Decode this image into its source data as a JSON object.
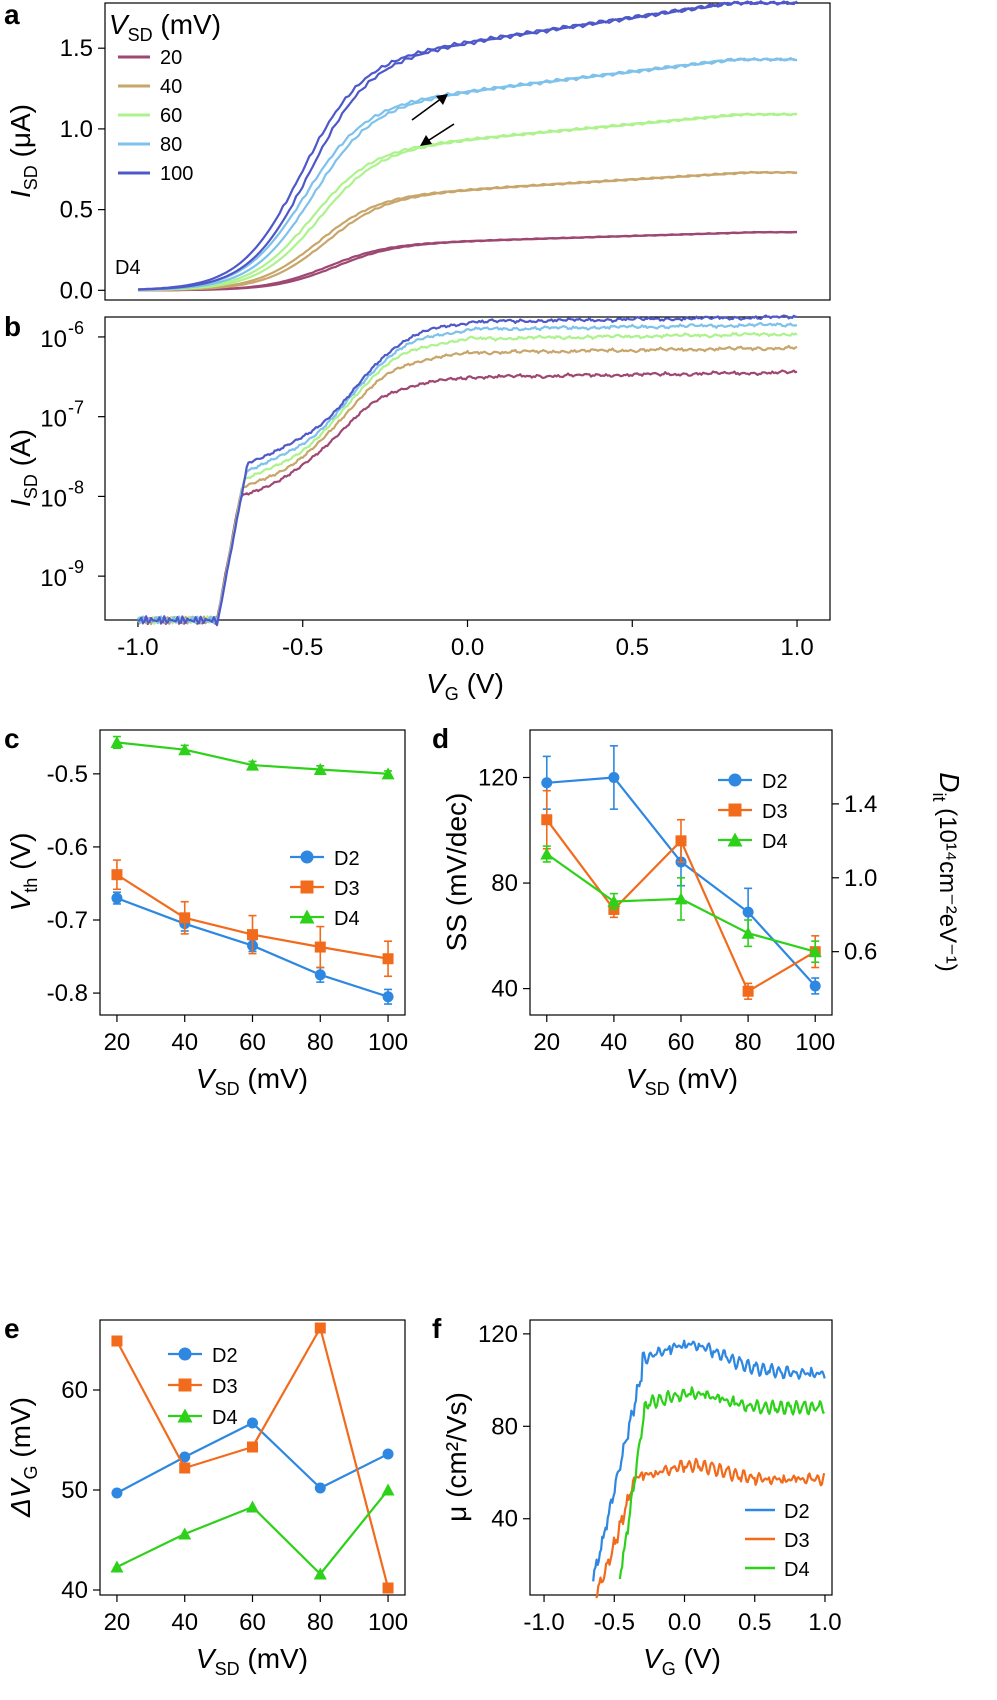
{
  "chart_data": [
    {
      "panel": "a",
      "type": "line",
      "title": "",
      "xlabel": "",
      "ylabel": {
        "main": "I",
        "sub": "SD",
        "unit": " (μA)"
      },
      "xlim": [
        -1.0,
        1.0
      ],
      "ylim": [
        -0.06,
        1.78
      ],
      "yticks": [
        "0.0",
        "0.5",
        "1.0",
        "1.5"
      ],
      "ytick_values": [
        0,
        0.5,
        1.0,
        1.5
      ],
      "legend_title": {
        "main": "V",
        "sub": "SD",
        "unit": " (mV)"
      },
      "annotation": "D4",
      "hysteresis_arrows": [
        "forward sweep",
        "reverse sweep"
      ],
      "series": [
        {
          "name": "20",
          "color": "#9e4772",
          "vs": 20,
          "sat": 0.36,
          "Vth": -0.42
        },
        {
          "name": "40",
          "color": "#c8a66b",
          "vs": 40,
          "sat": 0.73,
          "Vth": -0.45
        },
        {
          "name": "60",
          "color": "#aef28e",
          "vs": 60,
          "sat": 1.09,
          "Vth": -0.47
        },
        {
          "name": "80",
          "color": "#7ec2ec",
          "vs": 80,
          "sat": 1.43,
          "Vth": -0.49
        },
        {
          "name": "100",
          "color": "#4e58c8",
          "vs": 100,
          "sat": 1.78,
          "Vth": -0.5
        }
      ]
    },
    {
      "panel": "b",
      "type": "line",
      "yscale": "log",
      "xlabel": {
        "main": "V",
        "sub": "G",
        "unit": " (V)"
      },
      "ylabel": {
        "main": "I",
        "sub": "SD",
        "unit": " (A)"
      },
      "xlim": [
        -1.1,
        1.1
      ],
      "ylim_log10": [
        -9.55,
        -5.75
      ],
      "xticks": [
        "-1.0",
        "-0.5",
        "0.0",
        "0.5",
        "1.0"
      ],
      "xtick_values": [
        -1.0,
        -0.5,
        0.0,
        0.5,
        1.0
      ],
      "yticks": [
        "10",
        "10",
        "10",
        "10"
      ],
      "ytick_exponents": [
        "-9",
        "-8",
        "-7",
        "-6"
      ],
      "ytick_values": [
        -9,
        -8,
        -7,
        -6
      ],
      "off_current_A": 2.8e-10,
      "series_note": "same V_SD series as panel a: 20, 40, 60, 80, 100 mV"
    },
    {
      "panel": "c",
      "type": "line",
      "xlabel": {
        "main": "V",
        "sub": "SD",
        "unit": " (mV)"
      },
      "ylabel": {
        "main": "V",
        "sub": "th",
        "unit": " (V)"
      },
      "xlim": [
        15,
        105
      ],
      "ylim": [
        -0.83,
        -0.44
      ],
      "xticks": [
        "20",
        "40",
        "60",
        "80",
        "100"
      ],
      "xtick_values": [
        20,
        40,
        60,
        80,
        100
      ],
      "yticks": [
        "-0.8",
        "-0.7",
        "-0.6",
        "-0.5"
      ],
      "ytick_values": [
        -0.8,
        -0.7,
        -0.6,
        -0.5
      ],
      "x": [
        20,
        40,
        60,
        80,
        100
      ],
      "series": [
        {
          "name": "D2",
          "color": "#2e87e0",
          "marker": "circle",
          "values": [
            -0.67,
            -0.705,
            -0.735,
            -0.775,
            -0.805
          ],
          "err": [
            0.008,
            0.01,
            0.008,
            0.01,
            0.01
          ]
        },
        {
          "name": "D3",
          "color": "#f26b1d",
          "marker": "square",
          "values": [
            -0.638,
            -0.697,
            -0.72,
            -0.737,
            -0.753
          ],
          "err": [
            0.02,
            0.022,
            0.026,
            0.028,
            0.024
          ]
        },
        {
          "name": "D4",
          "color": "#2ed11a",
          "marker": "triangle",
          "values": [
            -0.457,
            -0.467,
            -0.488,
            -0.494,
            -0.5
          ],
          "err": [
            0.008,
            0.006,
            0.005,
            0.005,
            0.004
          ]
        }
      ]
    },
    {
      "panel": "d",
      "type": "line",
      "xlabel": {
        "main": "V",
        "sub": "SD",
        "unit": " (mV)"
      },
      "ylabel": "SS (mV/dec)",
      "ylabel_right": {
        "main": "D",
        "sub": "it",
        "unit": " (10¹⁴cm⁻²eV⁻¹)"
      },
      "xlim": [
        15,
        105
      ],
      "ylim": [
        30,
        138
      ],
      "xticks": [
        "20",
        "40",
        "60",
        "80",
        "100"
      ],
      "xtick_values": [
        20,
        40,
        60,
        80,
        100
      ],
      "yticks": [
        "40",
        "80",
        "120"
      ],
      "ytick_values": [
        40,
        80,
        120
      ],
      "yticks_right": [
        "0.6",
        "1.0",
        "1.4"
      ],
      "ytick_right_positions": [
        54,
        82,
        110
      ],
      "x": [
        20,
        40,
        60,
        80,
        100
      ],
      "series": [
        {
          "name": "D2",
          "color": "#2e87e0",
          "marker": "circle",
          "values": [
            118,
            120,
            88,
            69,
            41
          ],
          "err": [
            10,
            12,
            9,
            9,
            3
          ]
        },
        {
          "name": "D3",
          "color": "#f26b1d",
          "marker": "square",
          "values": [
            104,
            70,
            96,
            39,
            54
          ],
          "err": [
            11,
            3,
            8,
            3,
            6
          ]
        },
        {
          "name": "D4",
          "color": "#2ed11a",
          "marker": "triangle",
          "values": [
            91,
            73,
            74,
            61,
            54
          ],
          "err": [
            3,
            3,
            8,
            5,
            4
          ]
        }
      ]
    },
    {
      "panel": "e",
      "type": "line",
      "xlabel": {
        "main": "V",
        "sub": "SD",
        "unit": " (mV)"
      },
      "ylabel": {
        "main": "ΔV",
        "sub": "G",
        "unit": " (mV)"
      },
      "xlim": [
        15,
        105
      ],
      "ylim": [
        39.5,
        67
      ],
      "xticks": [
        "20",
        "40",
        "60",
        "80",
        "100"
      ],
      "xtick_values": [
        20,
        40,
        60,
        80,
        100
      ],
      "yticks": [
        "40",
        "50",
        "60"
      ],
      "ytick_values": [
        40,
        50,
        60
      ],
      "x": [
        20,
        40,
        60,
        80,
        100
      ],
      "series": [
        {
          "name": "D2",
          "color": "#2e87e0",
          "marker": "circle",
          "values": [
            49.7,
            53.3,
            56.7,
            50.2,
            53.6
          ]
        },
        {
          "name": "D3",
          "color": "#f26b1d",
          "marker": "square",
          "values": [
            64.9,
            52.2,
            54.3,
            66.2,
            40.2
          ]
        },
        {
          "name": "D4",
          "color": "#2ed11a",
          "marker": "triangle",
          "values": [
            42.3,
            45.6,
            48.3,
            41.6,
            50.0
          ]
        }
      ]
    },
    {
      "panel": "f",
      "type": "line",
      "xlabel": {
        "main": "V",
        "sub": "G",
        "unit": " (V)"
      },
      "ylabel": "μ (cm²/Vs)",
      "xlim": [
        -1.1,
        1.05
      ],
      "ylim": [
        7,
        126
      ],
      "xticks": [
        "-1.0",
        "-0.5",
        "0.0",
        "0.5",
        "1.0"
      ],
      "xtick_values": [
        -1.0,
        -0.5,
        0.0,
        0.5,
        1.0
      ],
      "yticks": [
        "40",
        "80",
        "120"
      ],
      "ytick_values": [
        40,
        80,
        120
      ],
      "series": [
        {
          "name": "D2",
          "color": "#2e87e0",
          "start": -0.65,
          "lo": 16,
          "hi": 105,
          "rise_end": -0.3
        },
        {
          "name": "D3",
          "color": "#f26b1d",
          "start": -0.63,
          "lo": 9,
          "hi": 57,
          "rise_end": -0.35
        },
        {
          "name": "D4",
          "color": "#2ed11a",
          "start": -0.46,
          "lo": 16,
          "hi": 88,
          "rise_end": -0.28
        }
      ]
    }
  ]
}
